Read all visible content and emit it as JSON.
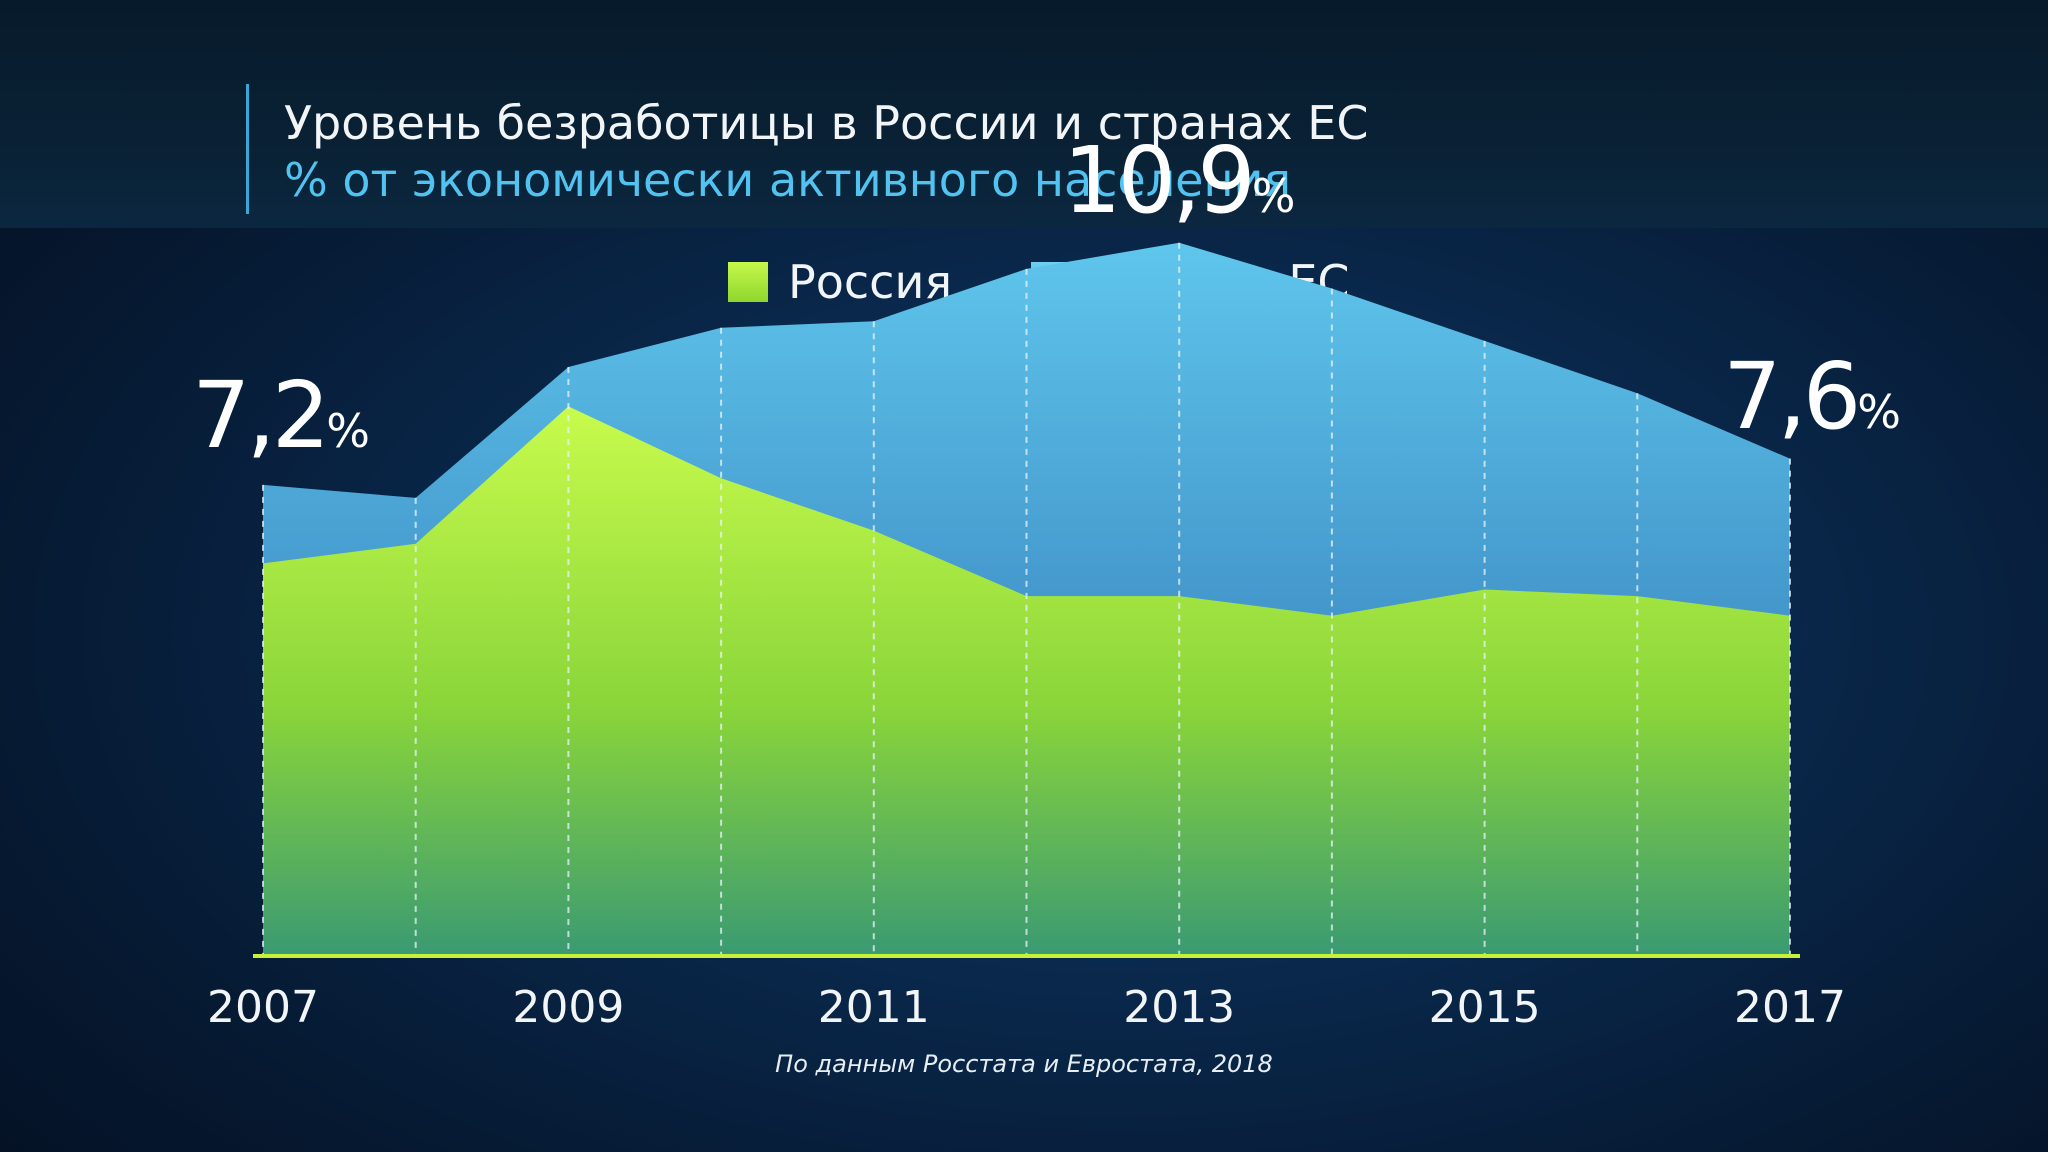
{
  "header": {
    "title": "Уровень безработицы в России и странах ЕС",
    "subtitle": "% от экономически активного населения"
  },
  "legend": [
    {
      "label": "Россия",
      "color": "#b6ee3a"
    },
    {
      "label": "Страны ЕС",
      "color": "#5bbfe8"
    }
  ],
  "annotations": {
    "first": {
      "value": "7,2",
      "unit": "%"
    },
    "peak": {
      "value": "10,9",
      "unit": "%"
    },
    "last": {
      "value": "7,6",
      "unit": "%"
    }
  },
  "source": "По данным Росстата и Евростата, 2018",
  "colors": {
    "russia_top": "#c6f84a",
    "russia_bottom": "#3d9a6e",
    "eu_top": "#5cc2ea",
    "eu_bottom": "#2c6fb0",
    "axis": "#c6f03a"
  },
  "chart_data": {
    "type": "area",
    "x": [
      2007,
      2008,
      2009,
      2010,
      2011,
      2012,
      2013,
      2014,
      2015,
      2016,
      2017
    ],
    "xtick_labels": [
      "2007",
      "2009",
      "2011",
      "2013",
      "2015",
      "2017"
    ],
    "ylim": [
      0,
      11.4
    ],
    "grid": "vertical dashed",
    "legend_position": "top-center",
    "series": [
      {
        "name": "Страны ЕС",
        "values": [
          7.2,
          7.0,
          9.0,
          9.6,
          9.7,
          10.5,
          10.9,
          10.2,
          9.4,
          8.6,
          7.6
        ]
      },
      {
        "name": "Россия",
        "values": [
          6.0,
          6.3,
          8.4,
          7.3,
          6.5,
          5.5,
          5.5,
          5.2,
          5.6,
          5.5,
          5.2
        ]
      }
    ]
  }
}
